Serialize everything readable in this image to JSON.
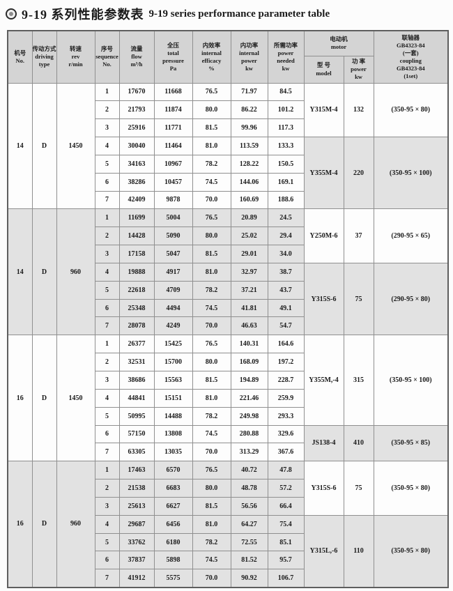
{
  "title": {
    "icon": "double-circle-bullet",
    "zh": "9-19 系列性能参数表",
    "en": "9-19 series performance parameter table"
  },
  "colors": {
    "header_bg": "#d4d4d4",
    "shade_bg": "#e2e2e2",
    "cell_border": "#8f8f8f",
    "outer_border": "#5e5e5e",
    "text": "#1a1a1a"
  },
  "table": {
    "headers": {
      "no": "机号\nNo.",
      "driving": "传动方式\ndriving\ntype",
      "rev": "转速\nrev\nr/min",
      "sequence": "序号\nsequence\nNo.",
      "flow": "流量\nflow\nm³/h",
      "pressure": "全压\ntotal\npressure\nPa",
      "efficacy": "内效率\ninternal\nefficacy\n%",
      "internal_power": "内功率\ninternal\npower\nkw",
      "power_needed": "所需功率\npower\nneeded\nkw",
      "motor": "电动机\nmotor",
      "model": "型 号\nmodel",
      "power": "功 率\npower\nkw",
      "coupling": "联轴器\nGB4323-84\n(一套)\ncoupling\nGB4323-84\n(1set)"
    },
    "blocks": [
      {
        "no": "14",
        "driving": "D",
        "rev": "1450",
        "shaded": false,
        "rows": [
          [
            "1",
            "17670",
            "11668",
            "76.5",
            "71.97",
            "84.5"
          ],
          [
            "2",
            "21793",
            "11874",
            "80.0",
            "86.22",
            "101.2"
          ],
          [
            "3",
            "25916",
            "11771",
            "81.5",
            "99.96",
            "117.3"
          ],
          [
            "4",
            "30040",
            "11464",
            "81.0",
            "113.59",
            "133.3"
          ],
          [
            "5",
            "34163",
            "10967",
            "78.2",
            "128.22",
            "150.5"
          ],
          [
            "6",
            "38286",
            "10457",
            "74.5",
            "144.06",
            "169.1"
          ],
          [
            "7",
            "42409",
            "9878",
            "70.0",
            "160.69",
            "188.6"
          ]
        ],
        "motors": [
          {
            "span": 3,
            "model": "Y315M-4",
            "power": "132",
            "coupling": "(350-95 × 80)",
            "shaded": false
          },
          {
            "span": 4,
            "model": "Y355M-4",
            "power": "220",
            "coupling": "(350-95 × 100)",
            "shaded": true
          }
        ]
      },
      {
        "no": "14",
        "driving": "D",
        "rev": "960",
        "shaded": true,
        "rows": [
          [
            "1",
            "11699",
            "5004",
            "76.5",
            "20.89",
            "24.5"
          ],
          [
            "2",
            "14428",
            "5090",
            "80.0",
            "25.02",
            "29.4"
          ],
          [
            "3",
            "17158",
            "5047",
            "81.5",
            "29.01",
            "34.0"
          ],
          [
            "4",
            "19888",
            "4917",
            "81.0",
            "32.97",
            "38.7"
          ],
          [
            "5",
            "22618",
            "4709",
            "78.2",
            "37.21",
            "43.7"
          ],
          [
            "6",
            "25348",
            "4494",
            "74.5",
            "41.81",
            "49.1"
          ],
          [
            "7",
            "28078",
            "4249",
            "70.0",
            "46.63",
            "54.7"
          ]
        ],
        "motors": [
          {
            "span": 3,
            "model": "Y250M-6",
            "power": "37",
            "coupling": "(290-95 × 65)",
            "shaded": false
          },
          {
            "span": 4,
            "model": "Y315S-6",
            "power": "75",
            "coupling": "(290-95 × 80)",
            "shaded": true
          }
        ]
      },
      {
        "no": "16",
        "driving": "D",
        "rev": "1450",
        "shaded": false,
        "rows": [
          [
            "1",
            "26377",
            "15425",
            "76.5",
            "140.31",
            "164.6"
          ],
          [
            "2",
            "32531",
            "15700",
            "80.0",
            "168.09",
            "197.2"
          ],
          [
            "3",
            "38686",
            "15563",
            "81.5",
            "194.89",
            "228.7"
          ],
          [
            "4",
            "44841",
            "15151",
            "81.0",
            "221.46",
            "259.9"
          ],
          [
            "5",
            "50995",
            "14488",
            "78.2",
            "249.98",
            "293.3"
          ],
          [
            "6",
            "57150",
            "13808",
            "74.5",
            "280.88",
            "329.6"
          ],
          [
            "7",
            "63305",
            "13035",
            "70.0",
            "313.29",
            "367.6"
          ]
        ],
        "motors": [
          {
            "span": 5,
            "model": "Y355M,-4",
            "power": "315",
            "coupling": "(350-95 × 100)",
            "shaded": false
          },
          {
            "span": 2,
            "model": "JS138-4",
            "power": "410",
            "coupling": "(350-95 × 85)",
            "shaded": true
          }
        ]
      },
      {
        "no": "16",
        "driving": "D",
        "rev": "960",
        "shaded": true,
        "rows": [
          [
            "1",
            "17463",
            "6570",
            "76.5",
            "40.72",
            "47.8"
          ],
          [
            "2",
            "21538",
            "6683",
            "80.0",
            "48.78",
            "57.2"
          ],
          [
            "3",
            "25613",
            "6627",
            "81.5",
            "56.56",
            "66.4"
          ],
          [
            "4",
            "29687",
            "6456",
            "81.0",
            "64.27",
            "75.4"
          ],
          [
            "5",
            "33762",
            "6180",
            "78.2",
            "72.55",
            "85.1"
          ],
          [
            "6",
            "37837",
            "5898",
            "74.5",
            "81.52",
            "95.7"
          ],
          [
            "7",
            "41912",
            "5575",
            "70.0",
            "90.92",
            "106.7"
          ]
        ],
        "motors": [
          {
            "span": 3,
            "model": "Y315S-6",
            "power": "75",
            "coupling": "(350-95 × 80)",
            "shaded": false
          },
          {
            "span": 4,
            "model": "Y315L,-6",
            "power": "110",
            "coupling": "(350-95 × 80)",
            "shaded": true
          }
        ]
      }
    ]
  }
}
